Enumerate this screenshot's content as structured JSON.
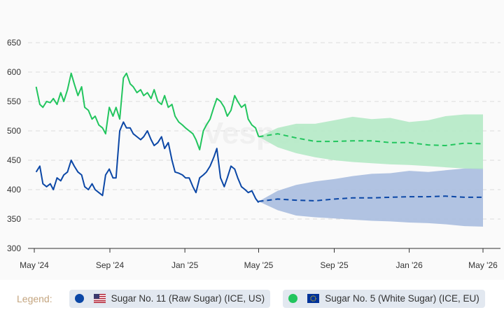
{
  "chart_data": {
    "type": "line",
    "title": "",
    "xlabel": "",
    "ylabel": "",
    "ylim": [
      300,
      650
    ],
    "yticks": [
      300,
      350,
      400,
      450,
      500,
      550,
      600,
      650
    ],
    "xlim": [
      "2024-04-30",
      "2026-05-10"
    ],
    "xticks": [
      {
        "date": "2024-05-01",
        "label": "May '24"
      },
      {
        "date": "2024-09-01",
        "label": "Sep '24"
      },
      {
        "date": "2025-01-01",
        "label": "Jan '25"
      },
      {
        "date": "2025-05-01",
        "label": "May '25"
      },
      {
        "date": "2025-09-01",
        "label": "Sep '25"
      },
      {
        "date": "2026-01-01",
        "label": "Jan '26"
      },
      {
        "date": "2026-05-01",
        "label": "May '26"
      }
    ],
    "grid": "horizontal dashed",
    "watermark": "Vesper",
    "history_dates": [
      "2024-05-04",
      "2024-05-10",
      "2024-05-15",
      "2024-05-21",
      "2024-05-27",
      "2024-06-01",
      "2024-06-07",
      "2024-06-13",
      "2024-06-18",
      "2024-06-24",
      "2024-06-30",
      "2024-07-05",
      "2024-07-11",
      "2024-07-17",
      "2024-07-22",
      "2024-07-28",
      "2024-08-03",
      "2024-08-08",
      "2024-08-14",
      "2024-08-20",
      "2024-08-25",
      "2024-08-31",
      "2024-09-06",
      "2024-09-11",
      "2024-09-17",
      "2024-09-23",
      "2024-09-28",
      "2024-10-04",
      "2024-10-09",
      "2024-10-15",
      "2024-10-21",
      "2024-10-26",
      "2024-11-01",
      "2024-11-07",
      "2024-11-12",
      "2024-11-18",
      "2024-11-24",
      "2024-11-29",
      "2024-12-05",
      "2024-12-11",
      "2024-12-16",
      "2024-12-22",
      "2024-12-28",
      "2025-01-02",
      "2025-01-08",
      "2025-01-14",
      "2025-01-19",
      "2025-01-25",
      "2025-01-31",
      "2025-02-05",
      "2025-02-11",
      "2025-02-17",
      "2025-02-22",
      "2025-02-28",
      "2025-03-06",
      "2025-03-11",
      "2025-03-17",
      "2025-03-23",
      "2025-03-28",
      "2025-04-03",
      "2025-04-09",
      "2025-04-14",
      "2025-04-20",
      "2025-04-26",
      "2025-05-01"
    ],
    "forecast_dates": [
      "2025-05-01",
      "2025-06-01",
      "2025-07-01",
      "2025-08-01",
      "2025-09-01",
      "2025-10-01",
      "2025-11-01",
      "2025-12-01",
      "2026-01-01",
      "2026-02-01",
      "2026-03-01",
      "2026-04-01",
      "2026-05-01"
    ],
    "series": [
      {
        "name": "Sugar No. 11 (Raw Sugar) (ICE, US)",
        "color": "#0b47a6",
        "band_color": "#a9bcdf",
        "history": [
          430,
          440,
          410,
          405,
          410,
          400,
          420,
          415,
          425,
          430,
          450,
          440,
          430,
          425,
          405,
          400,
          410,
          400,
          395,
          390,
          425,
          435,
          420,
          420,
          500,
          515,
          505,
          505,
          495,
          490,
          485,
          490,
          500,
          485,
          475,
          480,
          490,
          470,
          480,
          450,
          430,
          428,
          425,
          420,
          420,
          405,
          395,
          420,
          425,
          430,
          440,
          455,
          470,
          420,
          405,
          420,
          440,
          435,
          420,
          405,
          400,
          395,
          398,
          385,
          378
        ],
        "forecast": [
          380,
          384,
          382,
          381,
          384,
          386,
          386,
          387,
          388,
          388,
          389,
          387,
          387
        ],
        "forecast_upper": [
          380,
          398,
          408,
          414,
          418,
          423,
          427,
          428,
          432,
          430,
          433,
          436,
          437
        ],
        "forecast_lower": [
          380,
          365,
          356,
          353,
          351,
          349,
          347,
          346,
          344,
          343,
          341,
          338,
          337
        ]
      },
      {
        "name": "Sugar No. 5 (White Sugar) (ICE, EU)",
        "color": "#22c55e",
        "band_color": "#b4e9c5",
        "history": [
          575,
          545,
          540,
          550,
          548,
          555,
          545,
          565,
          550,
          570,
          598,
          580,
          560,
          575,
          540,
          535,
          520,
          525,
          510,
          505,
          495,
          540,
          525,
          540,
          520,
          590,
          598,
          580,
          575,
          565,
          570,
          560,
          565,
          555,
          570,
          550,
          545,
          560,
          540,
          545,
          525,
          515,
          510,
          505,
          500,
          495,
          485,
          468,
          500,
          510,
          520,
          540,
          555,
          550,
          540,
          525,
          535,
          560,
          550,
          540,
          545,
          520,
          510,
          505,
          490
        ],
        "forecast": [
          490,
          495,
          488,
          482,
          482,
          483,
          483,
          480,
          480,
          476,
          475,
          479,
          478
        ],
        "forecast_upper": [
          490,
          505,
          512,
          512,
          518,
          524,
          520,
          522,
          515,
          518,
          525,
          528,
          528
        ],
        "forecast_lower": [
          490,
          472,
          462,
          455,
          450,
          447,
          445,
          443,
          442,
          440,
          438,
          436,
          435
        ]
      }
    ]
  },
  "legend": {
    "label": "Legend:",
    "items": [
      {
        "label": "Sugar No. 11 (Raw Sugar) (ICE, US)",
        "color": "#0b47a6",
        "flag": "us-flag-icon"
      },
      {
        "label": "Sugar No. 5 (White Sugar) (ICE, EU)",
        "color": "#22c55e",
        "flag": "eu-flag-icon"
      }
    ]
  }
}
